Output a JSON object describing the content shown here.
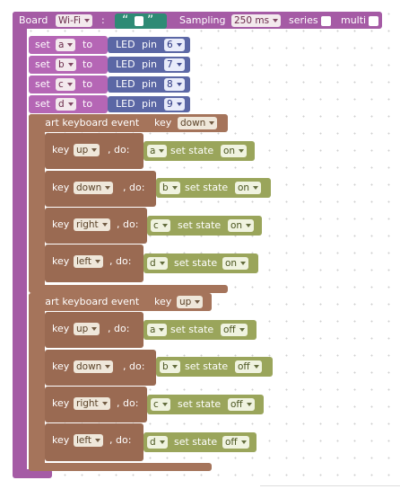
{
  "board": {
    "label": "Board",
    "type": "Wi-Fi",
    "colon": ":",
    "quote_open": "“",
    "quote_close": "”",
    "sampling_label": "Sampling",
    "sampling": "250 ms",
    "series_label": "series",
    "multi_label": "multi"
  },
  "assignments": [
    {
      "set": "set",
      "var": "a",
      "to": "to",
      "led": "LED",
      "pin_label": "pin",
      "pin": "6"
    },
    {
      "set": "set",
      "var": "b",
      "to": "to",
      "led": "LED",
      "pin_label": "pin",
      "pin": "7"
    },
    {
      "set": "set",
      "var": "c",
      "to": "to",
      "led": "LED",
      "pin_label": "pin",
      "pin": "8"
    },
    {
      "set": "set",
      "var": "d",
      "to": "to",
      "led": "LED",
      "pin_label": "pin",
      "pin": "9"
    }
  ],
  "events": [
    {
      "title": "Start keyboard event",
      "key_label": "key",
      "event": "down",
      "handlers": [
        {
          "key_label": "key",
          "key": "up",
          "do": ", do:",
          "var": "a",
          "action": "set state",
          "state": "on"
        },
        {
          "key_label": "key",
          "key": "down",
          "do": ", do:",
          "var": "b",
          "action": "set state",
          "state": "on"
        },
        {
          "key_label": "key",
          "key": "right",
          "do": ", do:",
          "var": "c",
          "action": "set state",
          "state": "on"
        },
        {
          "key_label": "key",
          "key": "left",
          "do": ", do:",
          "var": "d",
          "action": "set state",
          "state": "on"
        }
      ]
    },
    {
      "title": "Start keyboard event",
      "key_label": "key",
      "event": "up",
      "handlers": [
        {
          "key_label": "key",
          "key": "up",
          "do": ", do:",
          "var": "a",
          "action": "set state",
          "state": "off"
        },
        {
          "key_label": "key",
          "key": "down",
          "do": ", do:",
          "var": "b",
          "action": "set state",
          "state": "off"
        },
        {
          "key_label": "key",
          "key": "right",
          "do": ", do:",
          "var": "c",
          "action": "set state",
          "state": "off"
        },
        {
          "key_label": "key",
          "key": "left",
          "do": ", do:",
          "var": "d",
          "action": "set state",
          "state": "off"
        }
      ]
    }
  ],
  "colors": {
    "board": "#a55ba5",
    "led": "#5b67a5",
    "text": "#2e8b75",
    "keyboard": "#a5745b",
    "state": "#9aa55b"
  }
}
